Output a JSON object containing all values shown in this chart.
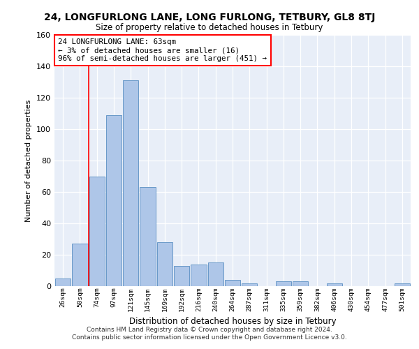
{
  "title": "24, LONGFURLONG LANE, LONG FURLONG, TETBURY, GL8 8TJ",
  "subtitle": "Size of property relative to detached houses in Tetbury",
  "xlabel": "Distribution of detached houses by size in Tetbury",
  "ylabel": "Number of detached properties",
  "bar_color": "#aec6e8",
  "bar_edge_color": "#6898c8",
  "background_color": "#e8eef8",
  "categories": [
    "26sqm",
    "50sqm",
    "74sqm",
    "97sqm",
    "121sqm",
    "145sqm",
    "169sqm",
    "192sqm",
    "216sqm",
    "240sqm",
    "264sqm",
    "287sqm",
    "311sqm",
    "335sqm",
    "359sqm",
    "382sqm",
    "406sqm",
    "430sqm",
    "454sqm",
    "477sqm",
    "501sqm"
  ],
  "values": [
    5,
    27,
    70,
    109,
    131,
    63,
    28,
    13,
    14,
    15,
    4,
    2,
    0,
    3,
    3,
    0,
    2,
    0,
    0,
    0,
    2
  ],
  "ylim": [
    0,
    160
  ],
  "yticks": [
    0,
    20,
    40,
    60,
    80,
    100,
    120,
    140,
    160
  ],
  "annotation_box_text": "24 LONGFURLONG LANE: 63sqm\n← 3% of detached houses are smaller (16)\n96% of semi-detached houses are larger (451) →",
  "vline_x_index": 1.5,
  "footnote1": "Contains HM Land Registry data © Crown copyright and database right 2024.",
  "footnote2": "Contains public sector information licensed under the Open Government Licence v3.0."
}
